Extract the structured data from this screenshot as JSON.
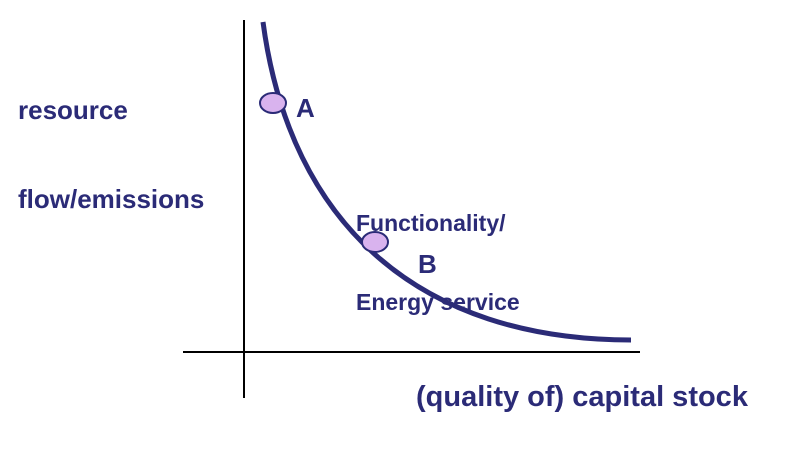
{
  "y_axis_label_line1": "resource",
  "y_axis_label_line2": "flow/emissions",
  "x_axis_label": "(quality of) capital stock",
  "curve_label_line1": "Functionality/",
  "curve_label_line2": "Energy service",
  "point_a_label": "A",
  "point_b_label": "B",
  "colors": {
    "curve": "#2b2b77",
    "axes": "#000000",
    "point_fill": "#d9b3ee",
    "point_stroke": "#2b2b77",
    "text": "#2b2b77"
  }
}
